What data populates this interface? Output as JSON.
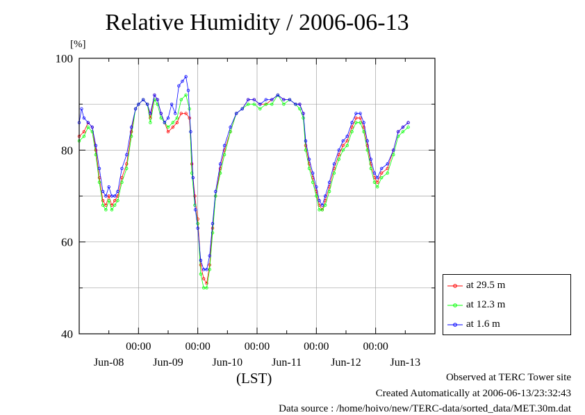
{
  "header": {
    "title": "Relative Humidity / 2006-06-13",
    "unit": "[%]"
  },
  "footer": {
    "xunit": "(LST)",
    "site": "Observed at TERC Tower site",
    "created": "Created Automatically at 2006-06-13/23:32:43",
    "source": "Data source : /home/hoivo/new/TERC-data/sorted_data/MET.30m.dat"
  },
  "colors": {
    "series_29_5": "#ff0000",
    "series_12_3": "#00ff00",
    "series_1_6": "#0000ff",
    "grid": "#a0a0a0"
  },
  "chart_data": {
    "type": "line",
    "title": "Relative Humidity / 2006-06-13",
    "ylabel": "[%]",
    "xlabel": "(LST)",
    "ylim": [
      40,
      100
    ],
    "yticks": [
      40,
      60,
      80,
      100
    ],
    "xlim": [
      -1.0,
      5.0
    ],
    "x_tick_top": [
      "00:00",
      "00:00",
      "00:00",
      "00:00",
      "00:00"
    ],
    "x_day_labels": [
      "Jun-08",
      "Jun-09",
      "Jun-10",
      "Jun-11",
      "Jun-12",
      "Jun-13"
    ],
    "grid": true,
    "legend_position": "right",
    "x_unit": "days since 2006-06-09 00:00 LST",
    "series": [
      {
        "name": "at 29.5 m",
        "color": "#ff0000",
        "points": [
          [
            -1.0,
            83
          ],
          [
            -0.92,
            84
          ],
          [
            -0.85,
            86
          ],
          [
            -0.78,
            85
          ],
          [
            -0.72,
            80
          ],
          [
            -0.66,
            74
          ],
          [
            -0.6,
            69
          ],
          [
            -0.55,
            68
          ],
          [
            -0.5,
            70
          ],
          [
            -0.45,
            68
          ],
          [
            -0.4,
            69
          ],
          [
            -0.35,
            70
          ],
          [
            -0.28,
            74
          ],
          [
            -0.2,
            77
          ],
          [
            -0.12,
            84
          ],
          [
            -0.05,
            89
          ],
          [
            0.0,
            90
          ],
          [
            0.08,
            91
          ],
          [
            0.15,
            90
          ],
          [
            0.2,
            87
          ],
          [
            0.27,
            92
          ],
          [
            0.32,
            91
          ],
          [
            0.38,
            88
          ],
          [
            0.44,
            86
          ],
          [
            0.5,
            84
          ],
          [
            0.58,
            85
          ],
          [
            0.65,
            86
          ],
          [
            0.72,
            88
          ],
          [
            0.8,
            88
          ],
          [
            0.86,
            87
          ],
          [
            0.9,
            77
          ],
          [
            0.95,
            70
          ],
          [
            1.0,
            65
          ],
          [
            1.05,
            55
          ],
          [
            1.1,
            52
          ],
          [
            1.15,
            51
          ],
          [
            1.2,
            55
          ],
          [
            1.25,
            63
          ],
          [
            1.3,
            70
          ],
          [
            1.38,
            76
          ],
          [
            1.45,
            80
          ],
          [
            1.55,
            84
          ],
          [
            1.65,
            88
          ],
          [
            1.75,
            89
          ],
          [
            1.85,
            91
          ],
          [
            1.95,
            91
          ],
          [
            2.05,
            90
          ],
          [
            2.15,
            90
          ],
          [
            2.25,
            91
          ],
          [
            2.35,
            92
          ],
          [
            2.45,
            91
          ],
          [
            2.55,
            91
          ],
          [
            2.65,
            90
          ],
          [
            2.72,
            90
          ],
          [
            2.78,
            88
          ],
          [
            2.82,
            81
          ],
          [
            2.88,
            77
          ],
          [
            2.94,
            74
          ],
          [
            3.0,
            71
          ],
          [
            3.05,
            68
          ],
          [
            3.1,
            67
          ],
          [
            3.15,
            69
          ],
          [
            3.22,
            72
          ],
          [
            3.3,
            76
          ],
          [
            3.38,
            79
          ],
          [
            3.45,
            81
          ],
          [
            3.52,
            82
          ],
          [
            3.6,
            85
          ],
          [
            3.67,
            87
          ],
          [
            3.74,
            87
          ],
          [
            3.8,
            85
          ],
          [
            3.86,
            81
          ],
          [
            3.92,
            77
          ],
          [
            3.98,
            74
          ],
          [
            4.03,
            73
          ],
          [
            4.1,
            75
          ],
          [
            4.2,
            76
          ],
          [
            4.3,
            80
          ],
          [
            4.38,
            84
          ],
          [
            4.46,
            85
          ],
          [
            4.55,
            86
          ]
        ]
      },
      {
        "name": "at 12.3 m",
        "color": "#00ff00",
        "points": [
          [
            -1.0,
            82
          ],
          [
            -0.92,
            83
          ],
          [
            -0.85,
            85
          ],
          [
            -0.78,
            84
          ],
          [
            -0.72,
            79
          ],
          [
            -0.66,
            73
          ],
          [
            -0.6,
            68
          ],
          [
            -0.55,
            67
          ],
          [
            -0.5,
            69
          ],
          [
            -0.45,
            67
          ],
          [
            -0.4,
            68
          ],
          [
            -0.35,
            69
          ],
          [
            -0.28,
            73
          ],
          [
            -0.2,
            76
          ],
          [
            -0.12,
            83
          ],
          [
            -0.05,
            89
          ],
          [
            0.0,
            90
          ],
          [
            0.08,
            91
          ],
          [
            0.15,
            90
          ],
          [
            0.2,
            86
          ],
          [
            0.27,
            91
          ],
          [
            0.32,
            90
          ],
          [
            0.38,
            87
          ],
          [
            0.44,
            86
          ],
          [
            0.5,
            85
          ],
          [
            0.58,
            86
          ],
          [
            0.65,
            87
          ],
          [
            0.72,
            91
          ],
          [
            0.8,
            92
          ],
          [
            0.86,
            89
          ],
          [
            0.9,
            75
          ],
          [
            0.95,
            68
          ],
          [
            1.0,
            64
          ],
          [
            1.05,
            53
          ],
          [
            1.1,
            50
          ],
          [
            1.15,
            50
          ],
          [
            1.2,
            54
          ],
          [
            1.25,
            62
          ],
          [
            1.3,
            70
          ],
          [
            1.38,
            75
          ],
          [
            1.45,
            79
          ],
          [
            1.55,
            84
          ],
          [
            1.65,
            88
          ],
          [
            1.75,
            89
          ],
          [
            1.85,
            90
          ],
          [
            1.95,
            90
          ],
          [
            2.05,
            89
          ],
          [
            2.15,
            90
          ],
          [
            2.25,
            90
          ],
          [
            2.35,
            92
          ],
          [
            2.45,
            90
          ],
          [
            2.55,
            91
          ],
          [
            2.65,
            90
          ],
          [
            2.72,
            89
          ],
          [
            2.78,
            87
          ],
          [
            2.82,
            80
          ],
          [
            2.88,
            76
          ],
          [
            2.94,
            73
          ],
          [
            3.0,
            70
          ],
          [
            3.05,
            67
          ],
          [
            3.1,
            67
          ],
          [
            3.15,
            68
          ],
          [
            3.22,
            71
          ],
          [
            3.3,
            75
          ],
          [
            3.38,
            78
          ],
          [
            3.45,
            80
          ],
          [
            3.52,
            81
          ],
          [
            3.6,
            84
          ],
          [
            3.67,
            86
          ],
          [
            3.74,
            86
          ],
          [
            3.8,
            84
          ],
          [
            3.86,
            80
          ],
          [
            3.92,
            76
          ],
          [
            3.98,
            73
          ],
          [
            4.03,
            72
          ],
          [
            4.1,
            74
          ],
          [
            4.2,
            75
          ],
          [
            4.3,
            79
          ],
          [
            4.38,
            83
          ],
          [
            4.46,
            84
          ],
          [
            4.55,
            85
          ]
        ]
      },
      {
        "name": "at 1.6 m",
        "color": "#0000ff",
        "points": [
          [
            -1.0,
            86
          ],
          [
            -0.96,
            89
          ],
          [
            -0.92,
            87
          ],
          [
            -0.85,
            86
          ],
          [
            -0.78,
            85
          ],
          [
            -0.72,
            81
          ],
          [
            -0.66,
            76
          ],
          [
            -0.6,
            71
          ],
          [
            -0.55,
            70
          ],
          [
            -0.5,
            72
          ],
          [
            -0.45,
            70
          ],
          [
            -0.4,
            70
          ],
          [
            -0.35,
            71
          ],
          [
            -0.28,
            76
          ],
          [
            -0.2,
            79
          ],
          [
            -0.12,
            85
          ],
          [
            -0.05,
            89
          ],
          [
            0.0,
            90
          ],
          [
            0.08,
            91
          ],
          [
            0.15,
            90
          ],
          [
            0.2,
            88
          ],
          [
            0.27,
            92
          ],
          [
            0.32,
            91
          ],
          [
            0.38,
            88
          ],
          [
            0.44,
            86
          ],
          [
            0.5,
            87
          ],
          [
            0.56,
            90
          ],
          [
            0.62,
            88
          ],
          [
            0.68,
            94
          ],
          [
            0.74,
            95
          ],
          [
            0.8,
            96
          ],
          [
            0.84,
            93
          ],
          [
            0.88,
            84
          ],
          [
            0.92,
            74
          ],
          [
            0.96,
            67
          ],
          [
            1.0,
            63
          ],
          [
            1.05,
            56
          ],
          [
            1.1,
            54
          ],
          [
            1.15,
            54
          ],
          [
            1.2,
            57
          ],
          [
            1.25,
            64
          ],
          [
            1.3,
            71
          ],
          [
            1.38,
            77
          ],
          [
            1.45,
            81
          ],
          [
            1.55,
            85
          ],
          [
            1.65,
            88
          ],
          [
            1.75,
            89
          ],
          [
            1.85,
            91
          ],
          [
            1.95,
            91
          ],
          [
            2.05,
            90
          ],
          [
            2.15,
            91
          ],
          [
            2.25,
            91
          ],
          [
            2.35,
            92
          ],
          [
            2.45,
            91
          ],
          [
            2.55,
            91
          ],
          [
            2.65,
            90
          ],
          [
            2.72,
            90
          ],
          [
            2.78,
            88
          ],
          [
            2.82,
            82
          ],
          [
            2.88,
            78
          ],
          [
            2.94,
            75
          ],
          [
            3.0,
            72
          ],
          [
            3.05,
            69
          ],
          [
            3.1,
            68
          ],
          [
            3.15,
            70
          ],
          [
            3.22,
            73
          ],
          [
            3.3,
            77
          ],
          [
            3.38,
            80
          ],
          [
            3.45,
            82
          ],
          [
            3.52,
            83
          ],
          [
            3.6,
            86
          ],
          [
            3.67,
            88
          ],
          [
            3.74,
            88
          ],
          [
            3.8,
            86
          ],
          [
            3.86,
            82
          ],
          [
            3.92,
            78
          ],
          [
            3.98,
            75
          ],
          [
            4.03,
            74
          ],
          [
            4.1,
            76
          ],
          [
            4.2,
            77
          ],
          [
            4.3,
            80
          ],
          [
            4.38,
            84
          ],
          [
            4.46,
            85
          ],
          [
            4.55,
            86
          ]
        ]
      }
    ]
  }
}
